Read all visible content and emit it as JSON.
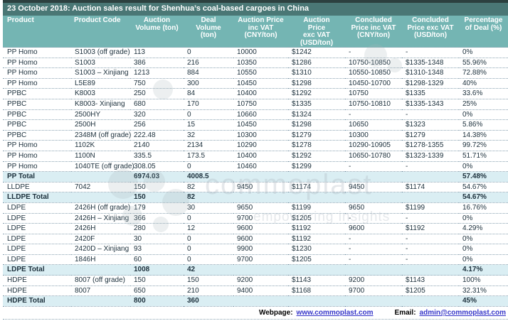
{
  "title": "23 October 2018: Auction sales result for Shenhua’s coal-based cargoes in China",
  "table": {
    "columns": [
      "Product",
      "Product Code",
      "Auction\nVolume (ton)",
      "Deal\nVolume\n(ton)",
      "Auction Price\ninc VAT\n(CNY/ton)",
      "Auction\nPrice\nexc VAT\n(USD/ton)",
      "Concluded\nPrice inc VAT\n(CNY/ton)",
      "Concluded\nPrice exc VAT\n(USD/ton)",
      "Percentage\nof Deal (%)"
    ],
    "rows": [
      {
        "total": false,
        "cells": [
          "PP Homo",
          "S1003 (off grade)",
          "113",
          "0",
          "10000",
          "$1242",
          "-",
          "-",
          "0%"
        ]
      },
      {
        "total": false,
        "cells": [
          "PP Homo",
          "S1003",
          "386",
          "216",
          "10350",
          "$1286",
          "10750-10850",
          "$1335-1348",
          "55.96%"
        ]
      },
      {
        "total": false,
        "cells": [
          "PP Homo",
          "S1003 – Xinjiang",
          "1213",
          "884",
          "10550",
          "$1310",
          "10550-10850",
          "$1310-1348",
          "72.88%"
        ]
      },
      {
        "total": false,
        "cells": [
          "PP Homo",
          "L5E89",
          "750",
          "300",
          "10450",
          "$1298",
          "10450-10700",
          "$1298-1329",
          "40%"
        ]
      },
      {
        "total": false,
        "cells": [
          "PPBC",
          "K8003",
          "250",
          "84",
          "10400",
          "$1292",
          "10750",
          "$1335",
          "33.6%"
        ]
      },
      {
        "total": false,
        "cells": [
          "PPBC",
          "K8003- Xinjiang",
          "680",
          "170",
          "10750",
          "$1335",
          "10750-10810",
          "$1335-1343",
          "25%"
        ]
      },
      {
        "total": false,
        "cells": [
          "PPBC",
          "2500HY",
          "320",
          "0",
          "10660",
          "$1324",
          "-",
          "-",
          "0%"
        ]
      },
      {
        "total": false,
        "cells": [
          "PPBC",
          "2500H",
          "256",
          "15",
          "10450",
          "$1298",
          "10650",
          "$1323",
          "5.86%"
        ]
      },
      {
        "total": false,
        "cells": [
          "PPBC",
          "2348M (off grade)",
          "222.48",
          "32",
          "10300",
          "$1279",
          "10300",
          "$1279",
          "14.38%"
        ]
      },
      {
        "total": false,
        "cells": [
          "PP Homo",
          "1102K",
          "2140",
          "2134",
          "10290",
          "$1278",
          "10290-10905",
          "$1278-1355",
          "99.72%"
        ]
      },
      {
        "total": false,
        "cells": [
          "PP Homo",
          "1100N",
          "335.5",
          "173.5",
          "10400",
          "$1292",
          "10650-10780",
          "$1323-1339",
          "51.71%"
        ]
      },
      {
        "total": false,
        "cells": [
          "PP Homo",
          "1040TE (off grade)",
          "308.05",
          "0",
          "10460",
          "$1299",
          "-",
          "-",
          "0%"
        ]
      },
      {
        "total": true,
        "cells": [
          "PP Total",
          "",
          "6974.03",
          "4008.5",
          "",
          "",
          "",
          "",
          "57.48%"
        ]
      },
      {
        "total": false,
        "cells": [
          "LLDPE",
          "7042",
          "150",
          "82",
          "9450",
          "$1174",
          "9450",
          "$1174",
          "54.67%"
        ]
      },
      {
        "total": true,
        "cells": [
          "LLDPE Total",
          "",
          "150",
          "82",
          "",
          "",
          "",
          "",
          "54.67%"
        ]
      },
      {
        "total": false,
        "cells": [
          "LDPE",
          "2426H (off grade)",
          "179",
          "30",
          "9650",
          "$1199",
          "9650",
          "$1199",
          "16.76%"
        ]
      },
      {
        "total": false,
        "cells": [
          "LDPE",
          "2426H – Xinjiang",
          "366",
          "0",
          "9700",
          "$1205",
          "-",
          "-",
          "0%"
        ]
      },
      {
        "total": false,
        "cells": [
          "LDPE",
          "2426H",
          "280",
          "12",
          "9600",
          "$1192",
          "9600",
          "$1192",
          "4.29%"
        ]
      },
      {
        "total": false,
        "cells": [
          "LDPE",
          "2420F",
          "30",
          "0",
          "9600",
          "$1192",
          "-",
          "-",
          "0%"
        ]
      },
      {
        "total": false,
        "cells": [
          "LDPE",
          "2420D – Xinjiang",
          "93",
          "0",
          "9900",
          "$1230",
          "-",
          "-",
          "0%"
        ]
      },
      {
        "total": false,
        "cells": [
          "LDPE",
          "1846H",
          "60",
          "0",
          "9700",
          "$1205",
          "-",
          "-",
          "0%"
        ]
      },
      {
        "total": true,
        "cells": [
          "LDPE Total",
          "",
          "1008",
          "42",
          "",
          "",
          "",
          "",
          "4.17%"
        ]
      },
      {
        "total": false,
        "cells": [
          "HDPE",
          "8007 (off grade)",
          "150",
          "150",
          "9200",
          "$1143",
          "9200",
          "$1143",
          "100%"
        ]
      },
      {
        "total": false,
        "cells": [
          "HDPE",
          "8007",
          "650",
          "210",
          "9400",
          "$1168",
          "9700",
          "$1205",
          "32.31%"
        ]
      },
      {
        "total": true,
        "cells": [
          "HDPE Total",
          "",
          "800",
          "360",
          "",
          "",
          "",
          "",
          "45%"
        ]
      }
    ]
  },
  "footer": {
    "webpage_label": "Webpage:",
    "webpage_url": "www.commoplast.com",
    "email_label": "Email:",
    "email_address": "admin@commoplast.com"
  },
  "watermark": {
    "brand": "commoplast",
    "tagline": "empowering insights"
  },
  "colors": {
    "top_border": "#2c403f",
    "title_bar": "#4a7775",
    "header": "#74b5b3",
    "total_row": "#daeef3",
    "dots": "#8aa3b2",
    "text": "#1c303c",
    "link": "#3535c8"
  }
}
